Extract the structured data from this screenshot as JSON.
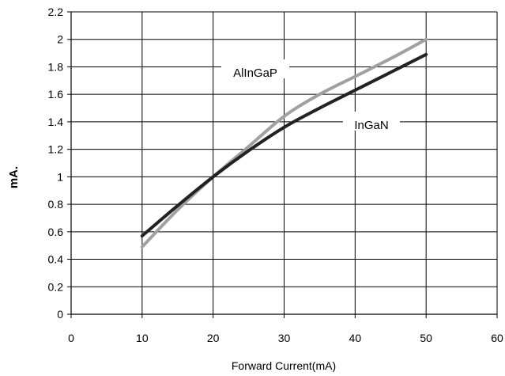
{
  "chart_data": {
    "type": "line",
    "title": "",
    "xlabel": "Forward Current(mA)",
    "ylabel": "mA.",
    "xlim": [
      0,
      60
    ],
    "ylim": [
      0,
      2.2
    ],
    "xticks": [
      "0",
      "10",
      "20",
      "30",
      "40",
      "50",
      "60"
    ],
    "yticks": [
      "0",
      "0.2",
      "0.4",
      "0.6",
      "0.8",
      "1",
      "1.2",
      "1.4",
      "1.6",
      "1.8",
      "2",
      "2.2"
    ],
    "grid": true,
    "series": [
      {
        "name": "AlInGaP",
        "color": "#a0a0a0",
        "x": [
          10,
          15,
          20,
          25,
          30,
          35,
          40,
          45,
          50
        ],
        "y": [
          0.49,
          0.76,
          1.0,
          1.22,
          1.44,
          1.6,
          1.73,
          1.86,
          2.0
        ]
      },
      {
        "name": "InGaN",
        "color": "#222222",
        "x": [
          10,
          15,
          20,
          25,
          30,
          35,
          40,
          45,
          50
        ],
        "y": [
          0.57,
          0.79,
          1.0,
          1.19,
          1.36,
          1.5,
          1.63,
          1.76,
          1.89
        ]
      }
    ]
  }
}
